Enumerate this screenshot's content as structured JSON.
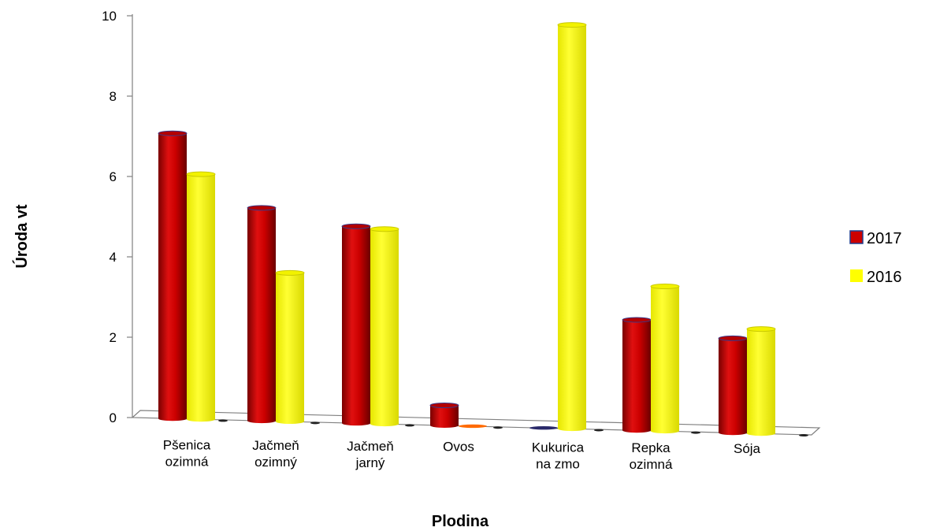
{
  "chart_data": {
    "type": "bar",
    "categories": [
      [
        "Pšenica",
        "ozimná"
      ],
      [
        "Jačmeň",
        "ozimný"
      ],
      [
        "Jačmeň",
        "jarný"
      ],
      [
        "Ovos"
      ],
      [
        "Kukurica",
        "na zmo"
      ],
      [
        "Repka",
        "ozimná"
      ],
      [
        "Sója"
      ]
    ],
    "series": [
      {
        "name": "2017",
        "values": [
          7.1,
          5.3,
          4.9,
          0.5,
          0,
          2.75,
          2.35
        ],
        "color": "#cc0000"
      },
      {
        "name": "2016",
        "values": [
          6.1,
          3.7,
          4.85,
          0,
          10.05,
          3.6,
          2.6
        ],
        "color": "#ffff00"
      }
    ],
    "xlabel": "Plodina",
    "ylabel": "Úroda vt",
    "ylim": [
      0,
      10
    ],
    "yticks": [
      "0",
      "2",
      "4",
      "6",
      "8",
      "10"
    ],
    "grid": false,
    "legend_position": "right"
  }
}
